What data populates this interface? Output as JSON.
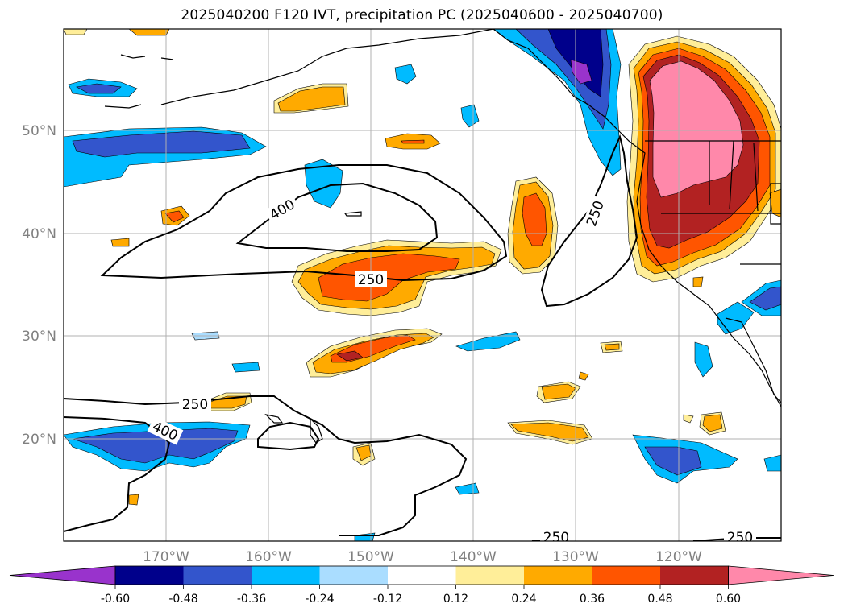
{
  "title": "2025040200 F120 IVT, precipitation PC (2025040600 - 2025040700)",
  "axes": {
    "lon_ticks": [
      "170°W",
      "160°W",
      "150°W",
      "140°W",
      "130°W",
      "120°W"
    ],
    "lat_ticks": [
      "50°N",
      "40°N",
      "30°N",
      "20°N"
    ]
  },
  "colorbar": {
    "ticks": [
      "-0.60",
      "-0.48",
      "-0.36",
      "-0.24",
      "-0.12",
      "0.12",
      "0.24",
      "0.36",
      "0.48",
      "0.60"
    ],
    "colors": [
      "#9933cc",
      "#00008b",
      "#3355cc",
      "#00bbff",
      "#aaddff",
      "#ffffff",
      "#ffee99",
      "#ffaa00",
      "#ff5500",
      "#b22222",
      "#ff88aa",
      "#ff88aa"
    ]
  },
  "contour_labels": [
    "400",
    "250",
    "250",
    "250",
    "400",
    "250",
    "250"
  ]
}
